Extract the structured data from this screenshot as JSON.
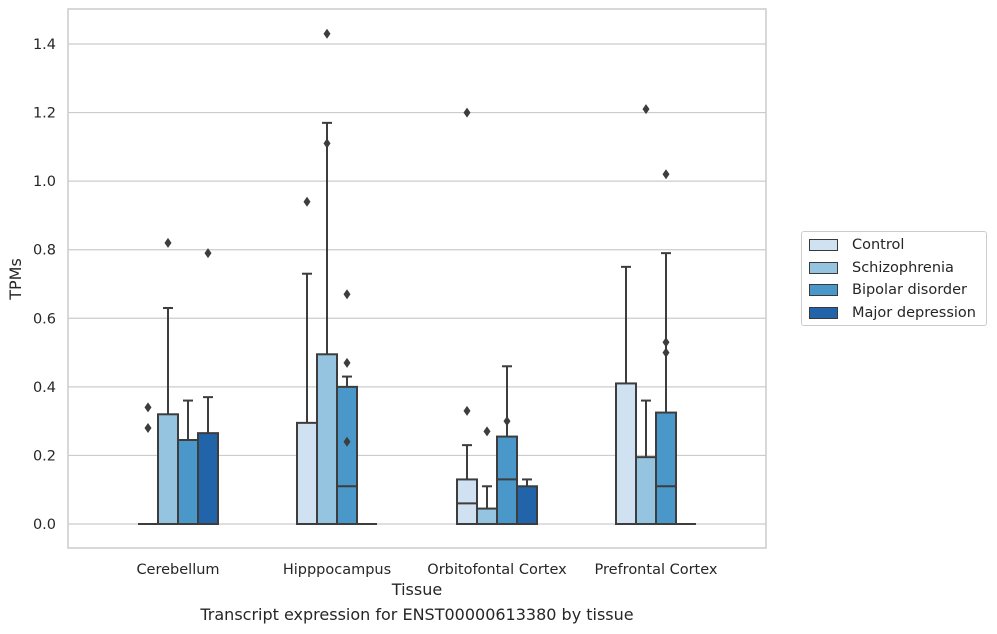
{
  "chart_data": {
    "type": "box",
    "title": "",
    "caption": "Transcript expression for ENST00000613380 by tissue",
    "xlabel": "Tissue",
    "ylabel": "TPMs",
    "ylim": [
      -0.07,
      1.5
    ],
    "yticks": [
      0.0,
      0.2,
      0.4,
      0.6,
      0.8,
      1.0,
      1.2,
      1.4
    ],
    "ytick_labels": [
      "0.0",
      "0.2",
      "0.4",
      "0.6",
      "0.8",
      "1.0",
      "1.2",
      "1.4"
    ],
    "grid": true,
    "legend_position": "right",
    "categories": [
      "Cerebellum",
      "Hipppocampus",
      "Orbitofontal Cortex",
      "Prefrontal Cortex"
    ],
    "series": [
      {
        "name": "Control",
        "color": "#d0e1f2",
        "boxes": [
          {
            "q1": 0.0,
            "median": 0.0,
            "q3": 0.0,
            "whislo": 0.0,
            "whishi": 0.0,
            "fliers": [
              0.34,
              0.28
            ]
          },
          {
            "q1": 0.0,
            "median": 0.0,
            "q3": 0.295,
            "whislo": 0.0,
            "whishi": 0.73,
            "fliers": [
              0.94
            ]
          },
          {
            "q1": 0.0,
            "median": 0.06,
            "q3": 0.13,
            "whislo": 0.0,
            "whishi": 0.23,
            "fliers": [
              1.2,
              0.33
            ]
          },
          {
            "q1": 0.0,
            "median": 0.0,
            "q3": 0.41,
            "whislo": 0.0,
            "whishi": 0.75,
            "fliers": []
          }
        ]
      },
      {
        "name": "Schizophrenia",
        "color": "#94c4df",
        "boxes": [
          {
            "q1": 0.0,
            "median": 0.0,
            "q3": 0.32,
            "whislo": 0.0,
            "whishi": 0.63,
            "fliers": [
              0.82
            ]
          },
          {
            "q1": 0.0,
            "median": 0.0,
            "q3": 0.495,
            "whislo": 0.0,
            "whishi": 1.17,
            "fliers": [
              1.43,
              1.11
            ]
          },
          {
            "q1": 0.0,
            "median": 0.0,
            "q3": 0.045,
            "whislo": 0.0,
            "whishi": 0.11,
            "fliers": [
              0.27
            ]
          },
          {
            "q1": 0.0,
            "median": 0.0,
            "q3": 0.195,
            "whislo": 0.0,
            "whishi": 0.36,
            "fliers": [
              1.21
            ]
          }
        ]
      },
      {
        "name": "Bipolar disorder",
        "color": "#4a98c9",
        "boxes": [
          {
            "q1": 0.0,
            "median": 0.0,
            "q3": 0.245,
            "whislo": 0.0,
            "whishi": 0.36,
            "fliers": []
          },
          {
            "q1": 0.0,
            "median": 0.11,
            "q3": 0.4,
            "whislo": 0.0,
            "whishi": 0.43,
            "fliers": [
              0.67,
              0.47,
              0.24
            ]
          },
          {
            "q1": 0.0,
            "median": 0.13,
            "q3": 0.255,
            "whislo": 0.0,
            "whishi": 0.46,
            "fliers": [
              0.3
            ]
          },
          {
            "q1": 0.0,
            "median": 0.11,
            "q3": 0.325,
            "whislo": 0.0,
            "whishi": 0.79,
            "fliers": [
              1.02,
              0.53,
              0.5
            ]
          }
        ]
      },
      {
        "name": "Major depression",
        "color": "#2264aa",
        "boxes": [
          {
            "q1": 0.0,
            "median": 0.0,
            "q3": 0.265,
            "whislo": 0.0,
            "whishi": 0.37,
            "fliers": [
              0.79
            ]
          },
          {
            "q1": 0.0,
            "median": 0.0,
            "q3": 0.0,
            "whislo": 0.0,
            "whishi": 0.0,
            "fliers": []
          },
          {
            "q1": 0.0,
            "median": 0.0,
            "q3": 0.11,
            "whislo": 0.0,
            "whishi": 0.13,
            "fliers": []
          },
          {
            "q1": 0.0,
            "median": 0.0,
            "q3": 0.0,
            "whislo": 0.0,
            "whishi": 0.0,
            "fliers": []
          }
        ]
      }
    ]
  }
}
